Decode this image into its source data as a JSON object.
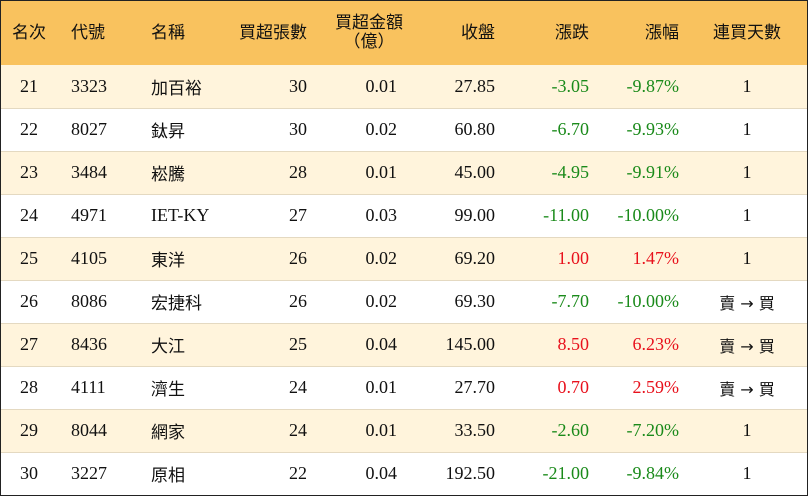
{
  "table": {
    "headers": {
      "rank": "名次",
      "code": "代號",
      "name": "名稱",
      "volume": "買超張數",
      "amount_line1": "買超金額",
      "amount_line2": "（億）",
      "close": "收盤",
      "change": "漲跌",
      "change_pct": "漲幅",
      "days": "連買天數"
    },
    "colors": {
      "header_bg": "#f9c25e",
      "row_odd_bg": "#fff4dc",
      "row_even_bg": "#ffffff",
      "negative": "#1a8a1a",
      "positive": "#e8111c"
    },
    "rows": [
      {
        "rank": "21",
        "code": "3323",
        "name": "加百裕",
        "volume": "30",
        "amount": "0.01",
        "close": "27.85",
        "change": "-3.05",
        "change_pct": "-9.87%",
        "days": "1",
        "direction": "neg"
      },
      {
        "rank": "22",
        "code": "8027",
        "name": "鈦昇",
        "volume": "30",
        "amount": "0.02",
        "close": "60.80",
        "change": "-6.70",
        "change_pct": "-9.93%",
        "days": "1",
        "direction": "neg"
      },
      {
        "rank": "23",
        "code": "3484",
        "name": "崧騰",
        "volume": "28",
        "amount": "0.01",
        "close": "45.00",
        "change": "-4.95",
        "change_pct": "-9.91%",
        "days": "1",
        "direction": "neg"
      },
      {
        "rank": "24",
        "code": "4971",
        "name": "IET-KY",
        "volume": "27",
        "amount": "0.03",
        "close": "99.00",
        "change": "-11.00",
        "change_pct": "-10.00%",
        "days": "1",
        "direction": "neg"
      },
      {
        "rank": "25",
        "code": "4105",
        "name": "東洋",
        "volume": "26",
        "amount": "0.02",
        "close": "69.20",
        "change": "1.00",
        "change_pct": "1.47%",
        "days": "1",
        "direction": "pos"
      },
      {
        "rank": "26",
        "code": "8086",
        "name": "宏捷科",
        "volume": "26",
        "amount": "0.02",
        "close": "69.30",
        "change": "-7.70",
        "change_pct": "-10.00%",
        "days": "賣 → 買",
        "direction": "neg"
      },
      {
        "rank": "27",
        "code": "8436",
        "name": "大江",
        "volume": "25",
        "amount": "0.04",
        "close": "145.00",
        "change": "8.50",
        "change_pct": "6.23%",
        "days": "賣 → 買",
        "direction": "pos"
      },
      {
        "rank": "28",
        "code": "4111",
        "name": "濟生",
        "volume": "24",
        "amount": "0.01",
        "close": "27.70",
        "change": "0.70",
        "change_pct": "2.59%",
        "days": "賣 → 買",
        "direction": "pos"
      },
      {
        "rank": "29",
        "code": "8044",
        "name": "網家",
        "volume": "24",
        "amount": "0.01",
        "close": "33.50",
        "change": "-2.60",
        "change_pct": "-7.20%",
        "days": "1",
        "direction": "neg"
      },
      {
        "rank": "30",
        "code": "3227",
        "name": "原相",
        "volume": "22",
        "amount": "0.04",
        "close": "192.50",
        "change": "-21.00",
        "change_pct": "-9.84%",
        "days": "1",
        "direction": "neg"
      }
    ]
  }
}
